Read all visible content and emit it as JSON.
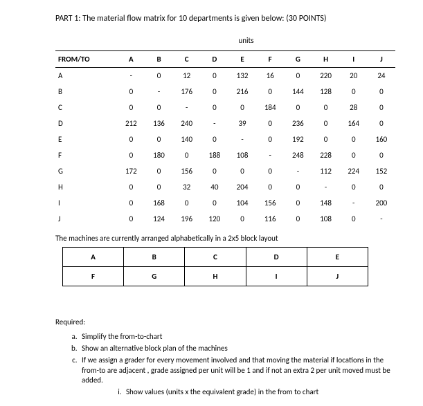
{
  "title": "PART 1: The material flow matrix for 10 departments is given below: (30 POINTS)",
  "units_label": "units",
  "matrix": {
    "header_first": "FROM/TO",
    "columns": [
      "A",
      "B",
      "C",
      "D",
      "E",
      "F",
      "G",
      "H",
      "I",
      "J"
    ],
    "rows": [
      {
        "label": "A",
        "cells": [
          "-",
          "0",
          "12",
          "0",
          "132",
          "16",
          "0",
          "220",
          "20",
          "24"
        ]
      },
      {
        "label": "B",
        "cells": [
          "0",
          "-",
          "176",
          "0",
          "216",
          "0",
          "144",
          "128",
          "0",
          "0"
        ]
      },
      {
        "label": "C",
        "cells": [
          "0",
          "0",
          "-",
          "0",
          "0",
          "184",
          "0",
          "0",
          "28",
          "0"
        ]
      },
      {
        "label": "D",
        "cells": [
          "212",
          "136",
          "240",
          "-",
          "39",
          "0",
          "236",
          "0",
          "164",
          "0"
        ]
      },
      {
        "label": "E",
        "cells": [
          "0",
          "0",
          "140",
          "0",
          "-",
          "0",
          "192",
          "0",
          "0",
          "160"
        ]
      },
      {
        "label": "F",
        "cells": [
          "0",
          "180",
          "0",
          "188",
          "108",
          "-",
          "248",
          "228",
          "0",
          "0"
        ]
      },
      {
        "label": "G",
        "cells": [
          "172",
          "0",
          "156",
          "0",
          "0",
          "0",
          "-",
          "112",
          "224",
          "152"
        ]
      },
      {
        "label": "H",
        "cells": [
          "0",
          "0",
          "32",
          "40",
          "204",
          "0",
          "0",
          "-",
          "0",
          "0"
        ]
      },
      {
        "label": "I",
        "cells": [
          "0",
          "168",
          "0",
          "0",
          "104",
          "156",
          "0",
          "148",
          "-",
          "200"
        ]
      },
      {
        "label": "J",
        "cells": [
          "0",
          "124",
          "196",
          "120",
          "0",
          "116",
          "0",
          "108",
          "0",
          "-"
        ]
      }
    ]
  },
  "layout_desc": "The machines are currently arranged alphabetically in a 2x5 block layout",
  "layout": {
    "row1": [
      "A",
      "B",
      "C",
      "D",
      "E"
    ],
    "row2": [
      "F",
      "G",
      "H",
      "I",
      "J"
    ]
  },
  "required_label": "Required:",
  "required": {
    "a": "Simplify the from-to-chart",
    "b": "Show an alternative block plan of the machines",
    "c": "If we assign a grader for every movement involved and that moving the material if locations in the from-to are adjacent , grade assigned per unit will be 1 and if not an extra 2 per unit moved must be added.",
    "c_i": "Show values (units x the equivalent grade) in the from to chart"
  },
  "colors": {
    "background": "#ffffff",
    "text": "#000000",
    "border": "#000000"
  }
}
